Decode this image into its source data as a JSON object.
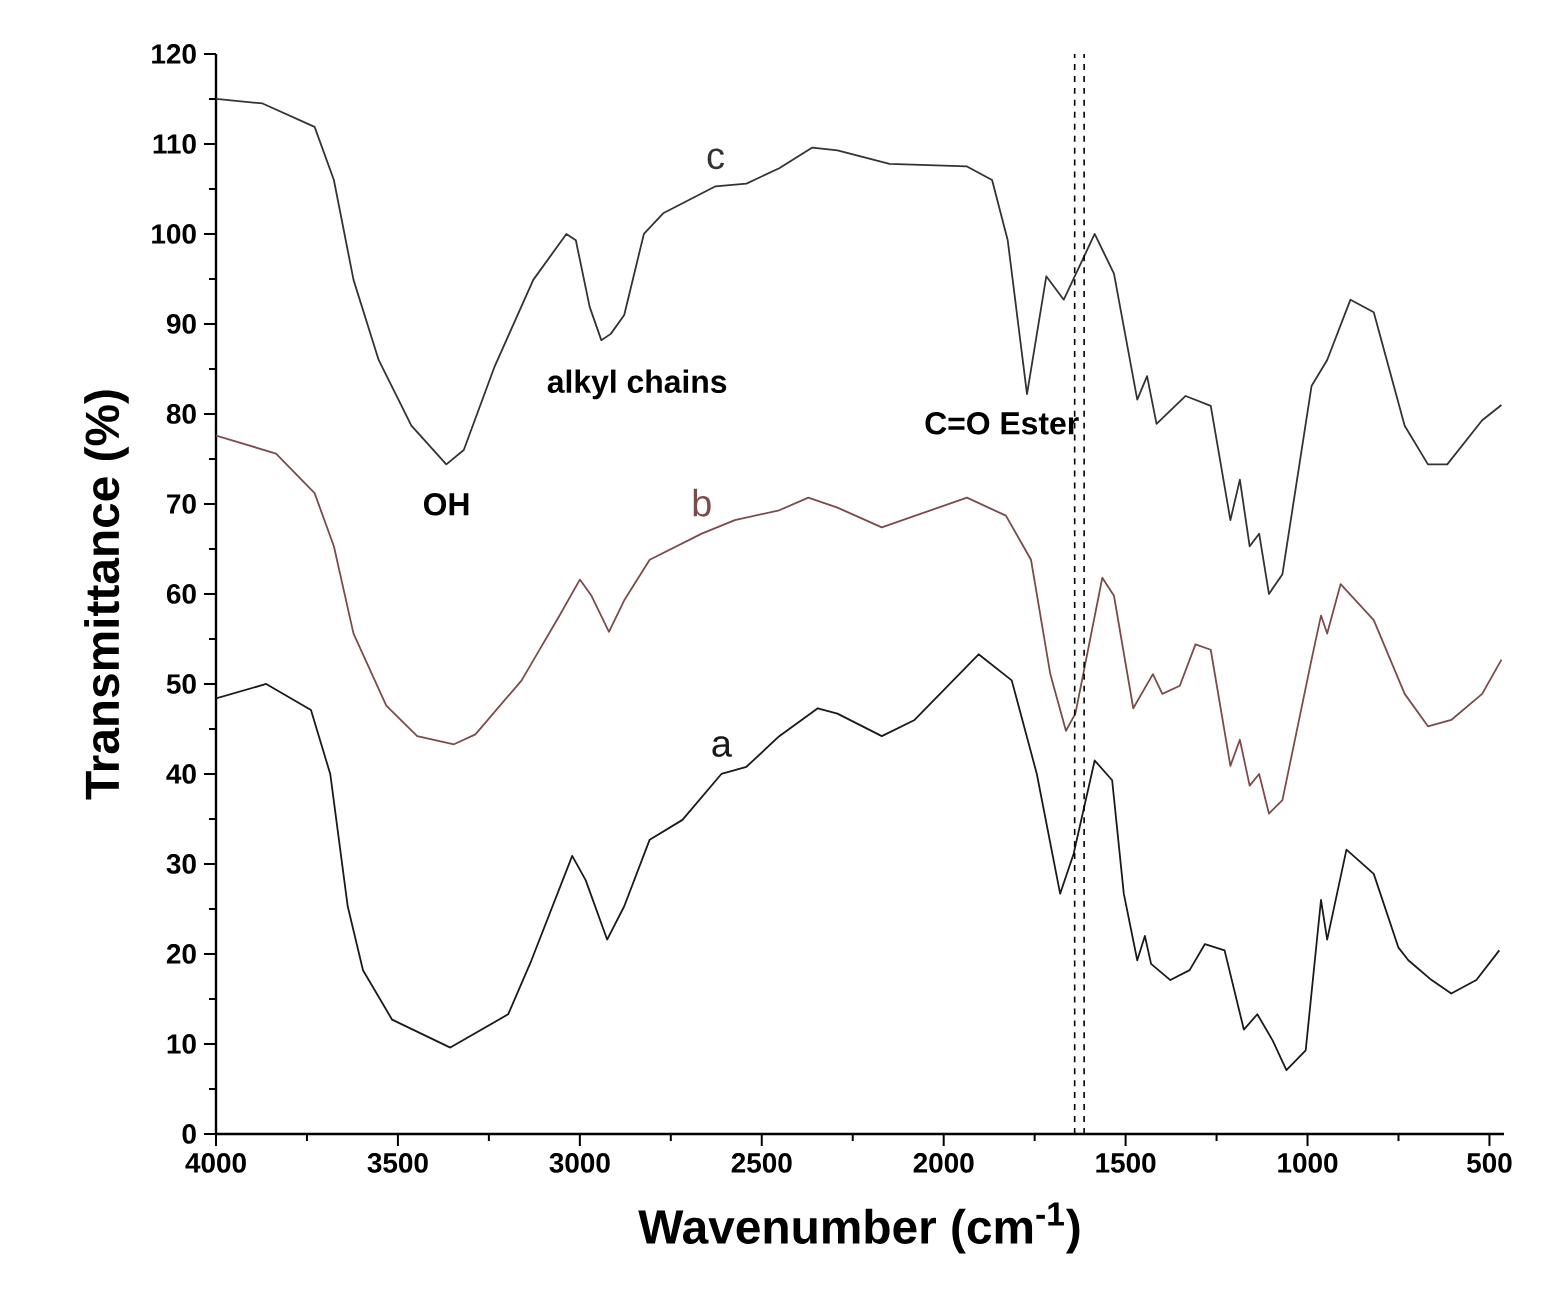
{
  "chart_data": {
    "type": "line",
    "xlabel": "Wavenumber (cm$^{-1}$)",
    "ylabel": "Transmittance (%)",
    "xlim": [
      4000,
      460
    ],
    "ylim": [
      0,
      120
    ],
    "xticks": [
      4000,
      3500,
      3000,
      2500,
      2000,
      1500,
      1000,
      500
    ],
    "yticks": [
      0,
      10,
      20,
      30,
      40,
      50,
      60,
      70,
      80,
      90,
      100,
      110,
      120
    ],
    "series": [
      {
        "name": "a",
        "color": "#1a1a1a",
        "x": [
          4000,
          3862,
          3739,
          3686,
          3638,
          3596,
          3516,
          3356,
          3197,
          3133,
          3021,
          2984,
          2925,
          2878,
          2808,
          2718,
          2611,
          2542,
          2452,
          2346,
          2292,
          2170,
          2080,
          1904,
          1813,
          1744,
          1680,
          1643,
          1585,
          1537,
          1505,
          1468,
          1447,
          1430,
          1377,
          1324,
          1282,
          1228,
          1175,
          1138,
          1096,
          1058,
          1005,
          963,
          946,
          893,
          818,
          750,
          723,
          659,
          605,
          536,
          473
        ],
        "values": [
          48.4,
          50,
          47.1,
          40,
          25.3,
          18.2,
          12.7,
          9.6,
          13.3,
          19.3,
          30.9,
          28.2,
          21.6,
          25.3,
          32.7,
          34.9,
          40,
          40.8,
          44.2,
          47.3,
          46.7,
          44.2,
          46,
          53.3,
          50.4,
          40,
          26.7,
          31.1,
          41.5,
          39.3,
          26.7,
          19.3,
          22,
          18.9,
          17.1,
          18.2,
          21.1,
          20.4,
          11.6,
          13.3,
          10.4,
          7.1,
          9.3,
          26,
          21.6,
          31.6,
          28.9,
          20.7,
          19.3,
          17.1,
          15.6,
          17.1,
          20.4
        ]
      },
      {
        "name": "b",
        "color": "#7d4b4b",
        "x": [
          4000,
          3835,
          3729,
          3676,
          3622,
          3532,
          3447,
          3346,
          3287,
          3160,
          3053,
          3000,
          2968,
          2920,
          2878,
          2808,
          2665,
          2574,
          2452,
          2372,
          2292,
          2170,
          2064,
          1936,
          1829,
          1760,
          1707,
          1664,
          1638,
          1564,
          1532,
          1479,
          1425,
          1399,
          1351,
          1308,
          1266,
          1212,
          1186,
          1159,
          1133,
          1106,
          1069,
          989,
          963,
          946,
          909,
          818,
          733,
          669,
          605,
          520,
          467
        ],
        "values": [
          77.6,
          75.6,
          71.2,
          65.3,
          55.6,
          47.6,
          44.2,
          43.3,
          44.4,
          50.4,
          57.8,
          61.6,
          59.8,
          55.8,
          59.3,
          63.8,
          66.7,
          68.2,
          69.3,
          70.7,
          69.6,
          67.4,
          68.9,
          70.7,
          68.7,
          63.8,
          51.1,
          44.8,
          46.7,
          61.8,
          59.8,
          47.3,
          51.1,
          48.9,
          49.8,
          54.4,
          53.8,
          40.9,
          43.8,
          38.7,
          40,
          35.6,
          37.1,
          52.7,
          57.6,
          55.6,
          61.1,
          57.1,
          48.9,
          45.3,
          46,
          48.9,
          52.7
        ]
      },
      {
        "name": "c",
        "color": "#333333",
        "x": [
          4000,
          3872,
          3729,
          3676,
          3622,
          3553,
          3463,
          3367,
          3319,
          3234,
          3128,
          3037,
          3011,
          2973,
          2941,
          2915,
          2878,
          2824,
          2771,
          2627,
          2542,
          2452,
          2361,
          2292,
          2149,
          1936,
          1867,
          1824,
          1771,
          1718,
          1670,
          1585,
          1532,
          1468,
          1441,
          1415,
          1335,
          1266,
          1212,
          1186,
          1159,
          1133,
          1106,
          1069,
          989,
          946,
          882,
          818,
          733,
          669,
          616,
          520,
          467
        ],
        "values": [
          115,
          114.5,
          111.9,
          106,
          94.9,
          86,
          78.7,
          74.4,
          76,
          85.3,
          94.9,
          100,
          99.3,
          91.9,
          88.2,
          88.9,
          91,
          100,
          102.3,
          105.3,
          105.6,
          107.3,
          109.6,
          109.3,
          107.8,
          107.5,
          106,
          99.3,
          82.2,
          95.3,
          92.7,
          100,
          95.6,
          81.6,
          84.2,
          78.9,
          82,
          80.9,
          68.2,
          72.7,
          65.3,
          66.7,
          60,
          62.2,
          83.1,
          86,
          92.7,
          91.3,
          78.7,
          74.4,
          74.4,
          79.3,
          81
        ]
      }
    ],
    "ref_lines": [
      {
        "axis": "x",
        "value": 1640,
        "line_style": "dashed"
      },
      {
        "axis": "x",
        "value": 1614,
        "line_style": "dashed"
      }
    ],
    "annotations": [
      "OH",
      "alkyl chains",
      "C=O Ester"
    ]
  }
}
